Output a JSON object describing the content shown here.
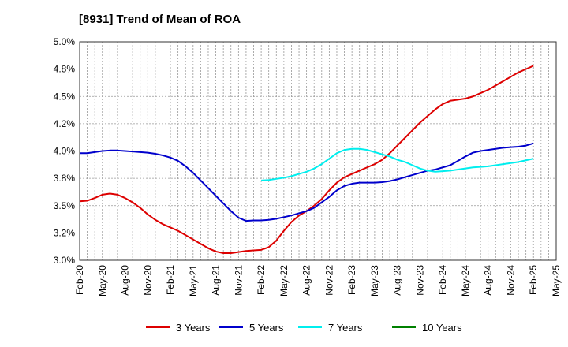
{
  "chart_data": {
    "type": "line",
    "title": "[8931]  Trend of Mean of ROA",
    "xlabel": "",
    "ylabel": "",
    "ylim": [
      3.0,
      5.0
    ],
    "y_ticks": [
      3.0,
      3.25,
      3.5,
      3.75,
      4.0,
      4.25,
      4.5,
      4.75,
      5.0
    ],
    "y_tick_labels": [
      "3.0%",
      "3.2%",
      "3.5%",
      "3.8%",
      "4.0%",
      "4.2%",
      "4.5%",
      "4.8%",
      "5.0%"
    ],
    "x_tick_labels": [
      "Feb-20",
      "May-20",
      "Aug-20",
      "Nov-20",
      "Feb-21",
      "May-21",
      "Aug-21",
      "Nov-21",
      "Feb-22",
      "May-22",
      "Aug-22",
      "Nov-22",
      "Feb-23",
      "May-23",
      "Aug-23",
      "Nov-23",
      "Feb-24",
      "May-24",
      "Aug-24",
      "Nov-24",
      "Feb-25",
      "May-25"
    ],
    "grid": true,
    "legend_position": "bottom",
    "series": [
      {
        "name": "3 Years",
        "color": "#dd0000",
        "x": [
          "Feb-20",
          "Mar-20",
          "Apr-20",
          "May-20",
          "Jun-20",
          "Jul-20",
          "Aug-20",
          "Sep-20",
          "Oct-20",
          "Nov-20",
          "Dec-20",
          "Jan-21",
          "Feb-21",
          "Mar-21",
          "Apr-21",
          "May-21",
          "Jun-21",
          "Jul-21",
          "Aug-21",
          "Sep-21",
          "Oct-21",
          "Nov-21",
          "Dec-21",
          "Jan-22",
          "Feb-22",
          "Mar-22",
          "Apr-22",
          "May-22",
          "Jun-22",
          "Jul-22",
          "Aug-22",
          "Sep-22",
          "Oct-22",
          "Nov-22",
          "Dec-22",
          "Jan-23",
          "Feb-23",
          "Mar-23",
          "Apr-23",
          "May-23",
          "Jun-23",
          "Jul-23",
          "Aug-23",
          "Sep-23",
          "Oct-23",
          "Nov-23",
          "Dec-23",
          "Jan-24",
          "Feb-24",
          "Mar-24",
          "Apr-24",
          "May-24",
          "Jun-24",
          "Jul-24",
          "Aug-24",
          "Sep-24",
          "Oct-24",
          "Nov-24",
          "Dec-24",
          "Jan-25",
          "Feb-25"
        ],
        "values": [
          3.54,
          3.545,
          3.57,
          3.6,
          3.61,
          3.6,
          3.57,
          3.53,
          3.48,
          3.42,
          3.37,
          3.33,
          3.3,
          3.27,
          3.23,
          3.19,
          3.15,
          3.11,
          3.08,
          3.065,
          3.065,
          3.075,
          3.085,
          3.09,
          3.095,
          3.12,
          3.18,
          3.27,
          3.35,
          3.41,
          3.45,
          3.5,
          3.56,
          3.64,
          3.71,
          3.76,
          3.79,
          3.82,
          3.85,
          3.88,
          3.92,
          3.98,
          4.05,
          4.12,
          4.19,
          4.26,
          4.32,
          4.38,
          4.43,
          4.46,
          4.47,
          4.48,
          4.5,
          4.53,
          4.56,
          4.6,
          4.64,
          4.68,
          4.72,
          4.75,
          4.78
        ]
      },
      {
        "name": "5 Years",
        "color": "#0000cc",
        "x": [
          "Feb-20",
          "Mar-20",
          "Apr-20",
          "May-20",
          "Jun-20",
          "Jul-20",
          "Aug-20",
          "Sep-20",
          "Oct-20",
          "Nov-20",
          "Dec-20",
          "Jan-21",
          "Feb-21",
          "Mar-21",
          "Apr-21",
          "May-21",
          "Jun-21",
          "Jul-21",
          "Aug-21",
          "Sep-21",
          "Oct-21",
          "Nov-21",
          "Dec-21",
          "Jan-22",
          "Feb-22",
          "Mar-22",
          "Apr-22",
          "May-22",
          "Jun-22",
          "Jul-22",
          "Aug-22",
          "Sep-22",
          "Oct-22",
          "Nov-22",
          "Dec-22",
          "Jan-23",
          "Feb-23",
          "Mar-23",
          "Apr-23",
          "May-23",
          "Jun-23",
          "Jul-23",
          "Aug-23",
          "Sep-23",
          "Oct-23",
          "Nov-23",
          "Dec-23",
          "Jan-24",
          "Feb-24",
          "Mar-24",
          "Apr-24",
          "May-24",
          "Jun-24",
          "Jul-24",
          "Aug-24",
          "Sep-24",
          "Oct-24",
          "Nov-24",
          "Dec-24",
          "Jan-25",
          "Feb-25"
        ],
        "values": [
          3.98,
          3.98,
          3.99,
          4.0,
          4.005,
          4.005,
          4.0,
          3.995,
          3.99,
          3.985,
          3.975,
          3.96,
          3.94,
          3.91,
          3.86,
          3.8,
          3.73,
          3.66,
          3.59,
          3.52,
          3.45,
          3.39,
          3.36,
          3.365,
          3.365,
          3.37,
          3.38,
          3.395,
          3.41,
          3.43,
          3.45,
          3.48,
          3.53,
          3.58,
          3.64,
          3.68,
          3.7,
          3.71,
          3.71,
          3.71,
          3.715,
          3.725,
          3.74,
          3.76,
          3.78,
          3.8,
          3.82,
          3.83,
          3.85,
          3.87,
          3.91,
          3.95,
          3.985,
          4.0,
          4.01,
          4.02,
          4.03,
          4.035,
          4.04,
          4.05,
          4.07
        ]
      },
      {
        "name": "7 Years",
        "color": "#00eeee",
        "x": [
          "Feb-22",
          "Mar-22",
          "Apr-22",
          "May-22",
          "Jun-22",
          "Jul-22",
          "Aug-22",
          "Sep-22",
          "Oct-22",
          "Nov-22",
          "Dec-22",
          "Jan-23",
          "Feb-23",
          "Mar-23",
          "Apr-23",
          "May-23",
          "Jun-23",
          "Jul-23",
          "Aug-23",
          "Sep-23",
          "Oct-23",
          "Nov-23",
          "Dec-23",
          "Jan-24",
          "Feb-24",
          "Mar-24",
          "Apr-24",
          "May-24",
          "Jun-24",
          "Jul-24",
          "Aug-24",
          "Sep-24",
          "Oct-24",
          "Nov-24",
          "Dec-24",
          "Jan-25",
          "Feb-25"
        ],
        "values": [
          3.73,
          3.735,
          3.745,
          3.755,
          3.77,
          3.79,
          3.81,
          3.84,
          3.88,
          3.93,
          3.98,
          4.01,
          4.02,
          4.02,
          4.01,
          3.99,
          3.97,
          3.95,
          3.92,
          3.9,
          3.87,
          3.84,
          3.82,
          3.81,
          3.815,
          3.82,
          3.83,
          3.84,
          3.85,
          3.855,
          3.86,
          3.87,
          3.88,
          3.89,
          3.9,
          3.915,
          3.93
        ]
      },
      {
        "name": "10 Years",
        "color": "#008000",
        "x": [],
        "values": []
      }
    ]
  }
}
